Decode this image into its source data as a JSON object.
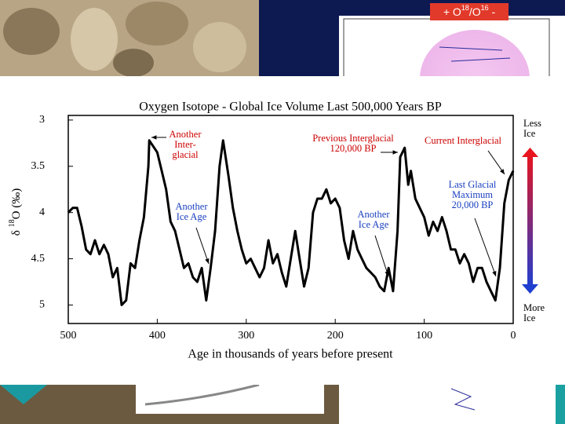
{
  "badge": {
    "prefix": "+ O",
    "sup1": "18",
    "mid": "/O",
    "sup2": "16",
    "suffix": " -"
  },
  "chart_data": {
    "type": "line",
    "title": "Oxygen Isotope - Global Ice Volume Last 500,000 Years BP",
    "x_label": "Age in thousands of years before present",
    "y_label": {
      "prefix": "δ ",
      "sup": "18",
      "suffix": "O (‰)"
    },
    "xlim": [
      500,
      0
    ],
    "ylim": [
      5.2,
      2.95
    ],
    "xticks": [
      500,
      400,
      300,
      200,
      100,
      0
    ],
    "yticks": [
      3,
      3.5,
      4,
      4.5,
      5
    ],
    "x": [
      500,
      495,
      490,
      485,
      480,
      475,
      470,
      465,
      460,
      455,
      450,
      445,
      440,
      435,
      430,
      425,
      420,
      415,
      410,
      409,
      400,
      395,
      390,
      385,
      380,
      375,
      370,
      365,
      360,
      355,
      350,
      345,
      340,
      335,
      330,
      326,
      320,
      315,
      310,
      305,
      300,
      295,
      290,
      285,
      280,
      275,
      270,
      265,
      260,
      255,
      250,
      245,
      240,
      235,
      230,
      225,
      220,
      215,
      210,
      205,
      200,
      195,
      190,
      185,
      180,
      175,
      170,
      165,
      160,
      155,
      150,
      145,
      140,
      135,
      130,
      127,
      122,
      118,
      115,
      110,
      105,
      100,
      95,
      90,
      85,
      80,
      75,
      70,
      65,
      60,
      55,
      50,
      45,
      40,
      35,
      30,
      25,
      20,
      15,
      10,
      5,
      0
    ],
    "series": [
      {
        "name": "δ18O",
        "color": "#000000",
        "values": [
          4.0,
          3.95,
          3.95,
          4.15,
          4.4,
          4.45,
          4.3,
          4.45,
          4.35,
          4.45,
          4.7,
          4.6,
          5.0,
          4.95,
          4.55,
          4.6,
          4.3,
          4.05,
          3.5,
          3.22,
          3.35,
          3.55,
          3.75,
          4.1,
          4.2,
          4.4,
          4.6,
          4.55,
          4.7,
          4.75,
          4.6,
          4.95,
          4.6,
          4.2,
          3.5,
          3.22,
          3.6,
          3.95,
          4.2,
          4.4,
          4.55,
          4.5,
          4.6,
          4.7,
          4.6,
          4.3,
          4.55,
          4.45,
          4.65,
          4.8,
          4.5,
          4.2,
          4.5,
          4.8,
          4.6,
          4.0,
          3.85,
          3.85,
          3.75,
          3.9,
          3.85,
          3.95,
          4.3,
          4.5,
          4.2,
          4.4,
          4.5,
          4.6,
          4.65,
          4.7,
          4.8,
          4.85,
          4.6,
          4.85,
          4.2,
          3.4,
          3.3,
          3.7,
          3.55,
          3.85,
          3.95,
          4.05,
          4.25,
          4.1,
          4.2,
          4.05,
          4.2,
          4.4,
          4.4,
          4.55,
          4.45,
          4.55,
          4.75,
          4.6,
          4.6,
          4.75,
          4.85,
          4.95,
          4.6,
          3.9,
          3.65,
          3.55
        ]
      }
    ],
    "annotations": [
      {
        "lines": [
          "Another",
          "Inter-",
          "glacial"
        ],
        "color": "#cc0000"
      },
      {
        "lines": [
          "Another",
          "Ice Age"
        ],
        "color": "#1a3fbf"
      },
      {
        "lines": [
          "Previous Interglacial",
          "120,000 BP"
        ],
        "color": "#cc0000"
      },
      {
        "lines": [
          "Current Interglacial"
        ],
        "color": "#cc0000"
      },
      {
        "lines": [
          "Another",
          "Ice Age"
        ],
        "color": "#1a3fbf"
      },
      {
        "lines": [
          "Last Glacial",
          "Maximum",
          "20,000 BP"
        ],
        "color": "#1a3fbf"
      },
      {
        "lines": [
          "Less",
          "Ice"
        ],
        "color": "#000000"
      },
      {
        "lines": [
          "More",
          "Ice"
        ],
        "color": "#000000"
      }
    ]
  }
}
